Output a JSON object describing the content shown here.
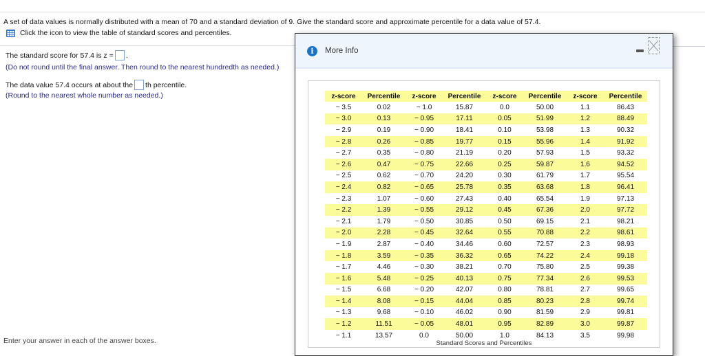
{
  "question": {
    "text": "A set of data values is normally distributed with a mean of 70 and a standard deviation of 9. Give the standard score and approximate percentile for a data value of 57.4.",
    "table_link_text": "Click the icon to view the table of standard scores and percentiles.",
    "table_icon": "table-grid-icon"
  },
  "answers": {
    "z_prefix": "The standard score for 57.4 is z =",
    "z_suffix": ".",
    "z_value": "",
    "z_hint": "(Do not round until the final answer. Then round to the nearest hundredth as needed.)",
    "pct_prefix": "The data value 57.4 occurs at about the",
    "pct_suffix": "th percentile.",
    "pct_value": "",
    "pct_hint": "(Round to the nearest whole number as needed.)"
  },
  "footer": {
    "text": "Enter your answer in each of the answer boxes."
  },
  "modal": {
    "title": "More Info",
    "icon": "info-icon",
    "minimize_icon": "minimize-icon",
    "close_icon": "close-icon",
    "table": {
      "headers": [
        "z-score",
        "Percentile",
        "z-score",
        "Percentile",
        "z-score",
        "Percentile",
        "z-score",
        "Percentile"
      ],
      "rows": [
        [
          "− 3.5",
          "0.02",
          "− 1.0",
          "15.87",
          "0.0",
          "50.00",
          "1.1",
          "86.43"
        ],
        [
          "− 3.0",
          "0.13",
          "− 0.95",
          "17.11",
          "0.05",
          "51.99",
          "1.2",
          "88.49"
        ],
        [
          "− 2.9",
          "0.19",
          "− 0.90",
          "18.41",
          "0.10",
          "53.98",
          "1.3",
          "90.32"
        ],
        [
          "− 2.8",
          "0.26",
          "− 0.85",
          "19.77",
          "0.15",
          "55.96",
          "1.4",
          "91.92"
        ],
        [
          "− 2.7",
          "0.35",
          "− 0.80",
          "21.19",
          "0.20",
          "57.93",
          "1.5",
          "93.32"
        ],
        [
          "− 2.6",
          "0.47",
          "− 0.75",
          "22.66",
          "0.25",
          "59.87",
          "1.6",
          "94.52"
        ],
        [
          "− 2.5",
          "0.62",
          "− 0.70",
          "24.20",
          "0.30",
          "61.79",
          "1.7",
          "95.54"
        ],
        [
          "− 2.4",
          "0.82",
          "− 0.65",
          "25.78",
          "0.35",
          "63.68",
          "1.8",
          "96.41"
        ],
        [
          "− 2.3",
          "1.07",
          "− 0.60",
          "27.43",
          "0.40",
          "65.54",
          "1.9",
          "97.13"
        ],
        [
          "− 2.2",
          "1.39",
          "− 0.55",
          "29.12",
          "0.45",
          "67.36",
          "2.0",
          "97.72"
        ],
        [
          "− 2.1",
          "1.79",
          "− 0.50",
          "30.85",
          "0.50",
          "69.15",
          "2.1",
          "98.21"
        ],
        [
          "− 2.0",
          "2.28",
          "− 0.45",
          "32.64",
          "0.55",
          "70.88",
          "2.2",
          "98.61"
        ],
        [
          "− 1.9",
          "2.87",
          "− 0.40",
          "34.46",
          "0.60",
          "72.57",
          "2.3",
          "98.93"
        ],
        [
          "− 1.8",
          "3.59",
          "− 0.35",
          "36.32",
          "0.65",
          "74.22",
          "2.4",
          "99.18"
        ],
        [
          "− 1.7",
          "4.46",
          "− 0.30",
          "38.21",
          "0.70",
          "75.80",
          "2.5",
          "99.38"
        ],
        [
          "− 1.6",
          "5.48",
          "− 0.25",
          "40.13",
          "0.75",
          "77.34",
          "2.6",
          "99.53"
        ],
        [
          "− 1.5",
          "6.68",
          "− 0.20",
          "42.07",
          "0.80",
          "78.81",
          "2.7",
          "99.65"
        ],
        [
          "− 1.4",
          "8.08",
          "− 0.15",
          "44.04",
          "0.85",
          "80.23",
          "2.8",
          "99.74"
        ],
        [
          "− 1.3",
          "9.68",
          "− 0.10",
          "46.02",
          "0.90",
          "81.59",
          "2.9",
          "99.81"
        ],
        [
          "− 1.2",
          "11.51",
          "− 0.05",
          "48.01",
          "0.95",
          "82.89",
          "3.0",
          "99.87"
        ],
        [
          "− 1.1",
          "13.57",
          "0.0",
          "50.00",
          "1.0",
          "84.13",
          "3.5",
          "99.98"
        ]
      ],
      "caption": "Standard Scores and Percentiles"
    }
  },
  "colors": {
    "row_highlight": "#fbfb9a",
    "info_blue": "#1a73c9",
    "modal_header_bg": "#eef5fc",
    "hint_text": "#2b2b8a",
    "answer_box_border": "#7a9fd0"
  }
}
